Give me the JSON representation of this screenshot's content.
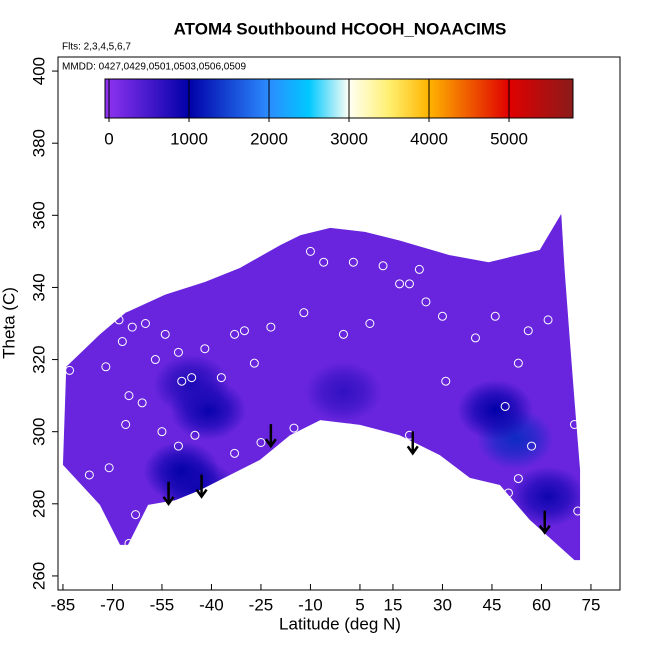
{
  "chart_data": {
    "type": "contour",
    "title": "ATOM4 Southbound HCOOH_NOAACIMS",
    "subtitle": "Flts: 2,3,4,5,6,7",
    "annotation": "MMDD: 0427,0429,0501,0503,0506,0509",
    "x_label": "Latitude (deg N)",
    "y_label": "Theta (C)",
    "xlim": [
      -86.5,
      83.8
    ],
    "xticks": [
      -85,
      -70,
      -55,
      -40,
      -25,
      -10,
      5,
      15,
      30,
      45,
      60,
      75
    ],
    "ylim": [
      256.1,
      403.9
    ],
    "yticks": [
      260,
      280,
      300,
      320,
      340,
      360,
      380,
      400
    ],
    "colorbar": {
      "clim": [
        -50,
        5800
      ],
      "ticks": [
        0,
        1000,
        2000,
        3000,
        4000,
        5000
      ],
      "stops": [
        {
          "value": -50,
          "color": "#9234f2"
        },
        {
          "value": 1000,
          "color": "#0000a8"
        },
        {
          "value": 2000,
          "color": "#2c8cff"
        },
        {
          "value": 2500,
          "color": "#00c8ff"
        },
        {
          "value": 3000,
          "color": "#fffff4"
        },
        {
          "value": 3500,
          "color": "#fff070"
        },
        {
          "value": 4000,
          "color": "#ffb400"
        },
        {
          "value": 5000,
          "color": "#e00000"
        },
        {
          "value": 5800,
          "color": "#8b1a1a"
        }
      ]
    },
    "field_base": 250,
    "field_outline": {
      "x": [
        -85,
        -84,
        -73.8,
        -66,
        -54,
        -42,
        -31.4,
        -19,
        -13,
        -4,
        6.5,
        17,
        32,
        44,
        59.5,
        66,
        67,
        68.6,
        70,
        71.7,
        71.7,
        70,
        56.5,
        47.4,
        38.3,
        29.2,
        17,
        5,
        -7,
        -16.2,
        -25.3,
        -34.4,
        -43.5,
        -51,
        -59.2,
        -65.3,
        -67.7,
        -73.8
      ],
      "y": [
        290.8,
        318,
        327,
        333,
        338,
        341.5,
        345.4,
        351.8,
        354.5,
        356.5,
        355.4,
        353,
        349,
        347,
        350.4,
        360.4,
        345,
        325.4,
        308.8,
        289.4,
        264.4,
        264.4,
        275.5,
        285.2,
        287.2,
        293.5,
        299,
        301.9,
        303.2,
        299,
        292.2,
        288,
        283.8,
        281,
        279.7,
        268.6,
        268.6,
        279.7
      ]
    },
    "blobs": [
      {
        "x": 52,
        "y": 298,
        "value": 1300
      },
      {
        "x": 46,
        "y": 306,
        "value": 1000
      },
      {
        "x": -41,
        "y": 306,
        "value": 950
      },
      {
        "x": -49,
        "y": 289,
        "value": 1000
      },
      {
        "x": -44,
        "y": 284,
        "value": 900
      },
      {
        "x": -46,
        "y": 313,
        "value": 800
      },
      {
        "x": 0,
        "y": 311,
        "value": 650
      },
      {
        "x": 62,
        "y": 282,
        "value": 900
      }
    ],
    "samples": {
      "x": [
        -83,
        -72,
        -68,
        -67,
        -64,
        -60,
        -57,
        -54,
        -50,
        -49,
        -46,
        -42,
        -37,
        -33,
        -30,
        -27,
        -22,
        -12,
        -10,
        -6,
        0,
        3,
        8,
        12,
        17,
        20,
        23,
        25,
        30,
        31,
        40,
        46,
        49,
        53,
        56,
        -66,
        -65,
        -61,
        -55,
        -50,
        -45,
        -77,
        -71,
        -63,
        -65,
        -15,
        2,
        20,
        29,
        44,
        50,
        57,
        53,
        71,
        70,
        -33,
        -25,
        62
      ],
      "y": [
        317,
        318,
        331,
        325,
        329,
        330,
        320,
        327,
        322,
        314,
        315,
        323,
        315,
        327,
        328,
        319,
        329,
        333,
        350,
        347,
        327,
        347,
        330,
        346,
        341,
        341,
        345,
        336,
        332,
        314,
        326,
        332,
        307,
        319,
        328,
        302,
        310,
        308,
        300,
        296,
        299,
        288,
        290,
        277,
        269,
        301,
        301,
        299,
        291,
        280,
        283,
        296,
        287,
        278,
        302,
        294,
        297,
        331
      ]
    },
    "arrows": {
      "x": [
        -53,
        -43,
        -22,
        21,
        61
      ],
      "y": [
        280,
        282,
        296,
        294,
        272
      ]
    }
  }
}
